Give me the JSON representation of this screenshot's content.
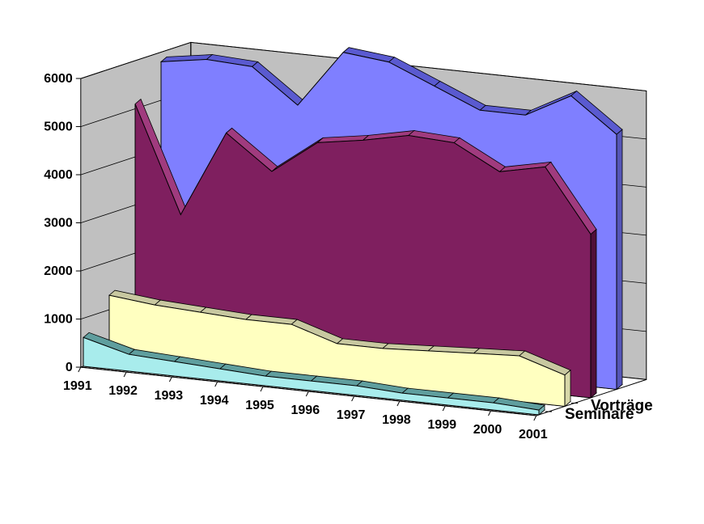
{
  "chart_data": {
    "type": "area",
    "subtype": "3d-area",
    "title": "",
    "xlabel": "",
    "ylabel": "",
    "ylim": [
      0,
      6000
    ],
    "y_ticks": [
      "0",
      "1000",
      "2000",
      "3000",
      "4000",
      "5000",
      "6000"
    ],
    "categories": [
      "1991",
      "1992",
      "1993",
      "1994",
      "1995",
      "1996",
      "1997",
      "1998",
      "1999",
      "2000",
      "2001"
    ],
    "series_depth_labels": [
      "Vorträge",
      "Seminare"
    ],
    "series": [
      {
        "name": "",
        "color": "#7f7fff",
        "top_color": "#5a5ad0",
        "side_color": "#5656b8",
        "values": [
          5800,
          5950,
          5900,
          5200,
          6400,
          6300,
          5900,
          5500,
          5500,
          6000,
          5300
        ]
      },
      {
        "name": "",
        "color": "#7f1f5f",
        "top_color": "#a03b7e",
        "side_color": "#501038",
        "values": [
          5100,
          2900,
          4700,
          4000,
          4700,
          4850,
          5050,
          5000,
          4500,
          4700,
          3400
        ]
      },
      {
        "name": "Vorträge",
        "color": "#ffffc0",
        "top_color": "#c8c8a0",
        "side_color": "#d8d8a8",
        "values": [
          1300,
          1200,
          1150,
          1100,
          1100,
          800,
          800,
          850,
          900,
          950,
          650
        ]
      },
      {
        "name": "Seminare",
        "color": "#a8ecec",
        "top_color": "#5f9e9e",
        "side_color": "#78b4b4",
        "values": [
          600,
          350,
          300,
          250,
          200,
          200,
          200,
          150,
          150,
          150,
          100
        ]
      }
    ],
    "grid": true,
    "wall_color": "#c0c0c0",
    "floor_color": "#808080",
    "legend": "none"
  }
}
